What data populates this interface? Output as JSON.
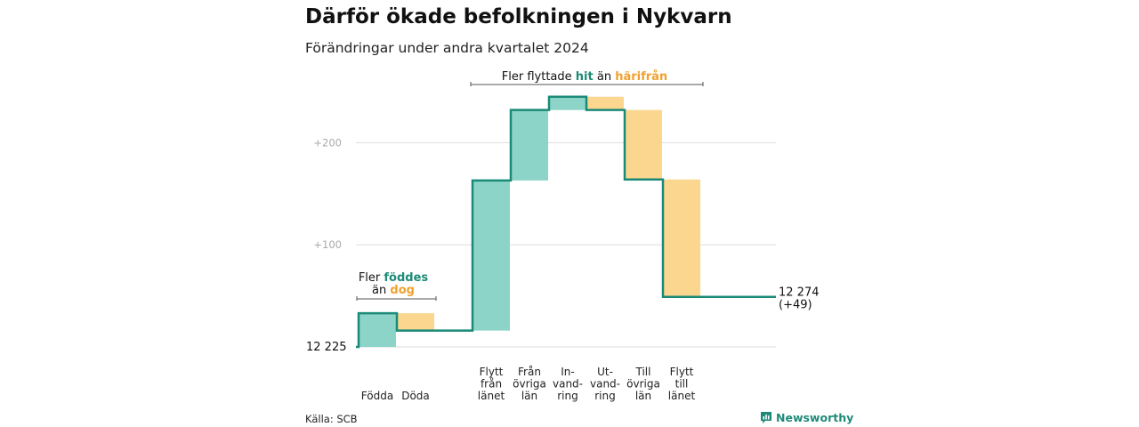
{
  "title": "Därför ökade befolkningen i Nykvarn",
  "subtitle": "Förändringar under andra kvartalet 2024",
  "source": "Källa: SCB",
  "brand": "Newsworthy",
  "colors": {
    "increase": "#8dd4c8",
    "decrease": "#fad68e",
    "line": "#1a8a78",
    "grid": "#dddddd",
    "accent_in": "#1f8a78",
    "accent_out": "#f0a12e"
  },
  "annotations": {
    "births": {
      "line1_prefix": "Fler ",
      "line1_bold": "föddes",
      "line2_prefix": "än ",
      "line2_bold": "dog"
    },
    "moves": {
      "prefix": "Fler flyttade ",
      "bold1": "hit",
      "middle": " än ",
      "bold2": "härifrån"
    }
  },
  "end_label": {
    "value": "12 274",
    "change": "(+49)"
  },
  "start_label": "12  225",
  "chart_data": {
    "type": "waterfall",
    "title": "Därför ökade befolkningen i Nykvarn",
    "subtitle": "Förändringar under andra kvartalet 2024",
    "start_value": 12225,
    "end_value": 12274,
    "net_change": 49,
    "baseline_label": "12  225",
    "y_ticks": [
      {
        "value": 100,
        "label": "+100"
      },
      {
        "value": 200,
        "label": "+200"
      }
    ],
    "ylim": [
      0,
      245
    ],
    "grid": true,
    "categories": [
      {
        "label": [
          "Födda"
        ],
        "value": 33,
        "group": "births"
      },
      {
        "label": [
          "Döda"
        ],
        "value": -17,
        "group": "births"
      },
      {
        "label": [
          "Flytt",
          "från",
          "länet"
        ],
        "value": 147,
        "group": "moves"
      },
      {
        "label": [
          "Från",
          "övriga",
          "län"
        ],
        "value": 69,
        "group": "moves"
      },
      {
        "label": [
          "In-",
          "vand-",
          "ring"
        ],
        "value": 13,
        "group": "moves"
      },
      {
        "label": [
          "Ut-",
          "vand-",
          "ring"
        ],
        "value": -13,
        "group": "moves"
      },
      {
        "label": [
          "Till",
          "övriga",
          "län"
        ],
        "value": -68,
        "group": "moves"
      },
      {
        "label": [
          "Flytt",
          "till",
          "länet"
        ],
        "value": -115,
        "group": "moves"
      }
    ]
  }
}
